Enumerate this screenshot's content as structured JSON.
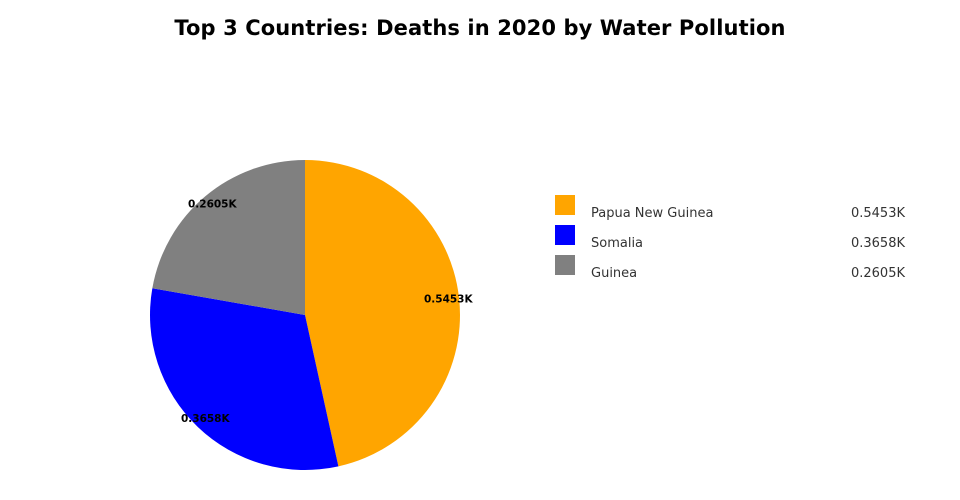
{
  "chart_data": {
    "type": "pie",
    "title": "Top 3 Countries: Deaths in 2020 by Water Pollution",
    "categories": [
      "Papua New Guinea",
      "Somalia",
      "Guinea"
    ],
    "values": [
      545.3,
      365.8,
      260.5
    ],
    "value_labels": [
      "0.5453K",
      "0.3658K",
      "0.2605K"
    ],
    "colors": [
      "#FFA500",
      "#0000FF",
      "#808080"
    ],
    "start_angle": "12 o'clock",
    "direction": "clockwise",
    "legend_position": "right",
    "legend_entries": [
      {
        "name": "Papua New Guinea",
        "value": "0.5453K",
        "color": "#FFA500"
      },
      {
        "name": "Somalia",
        "value": "0.3658K",
        "color": "#0000FF"
      },
      {
        "name": "Guinea",
        "value": "0.2605K",
        "color": "#808080"
      }
    ]
  }
}
